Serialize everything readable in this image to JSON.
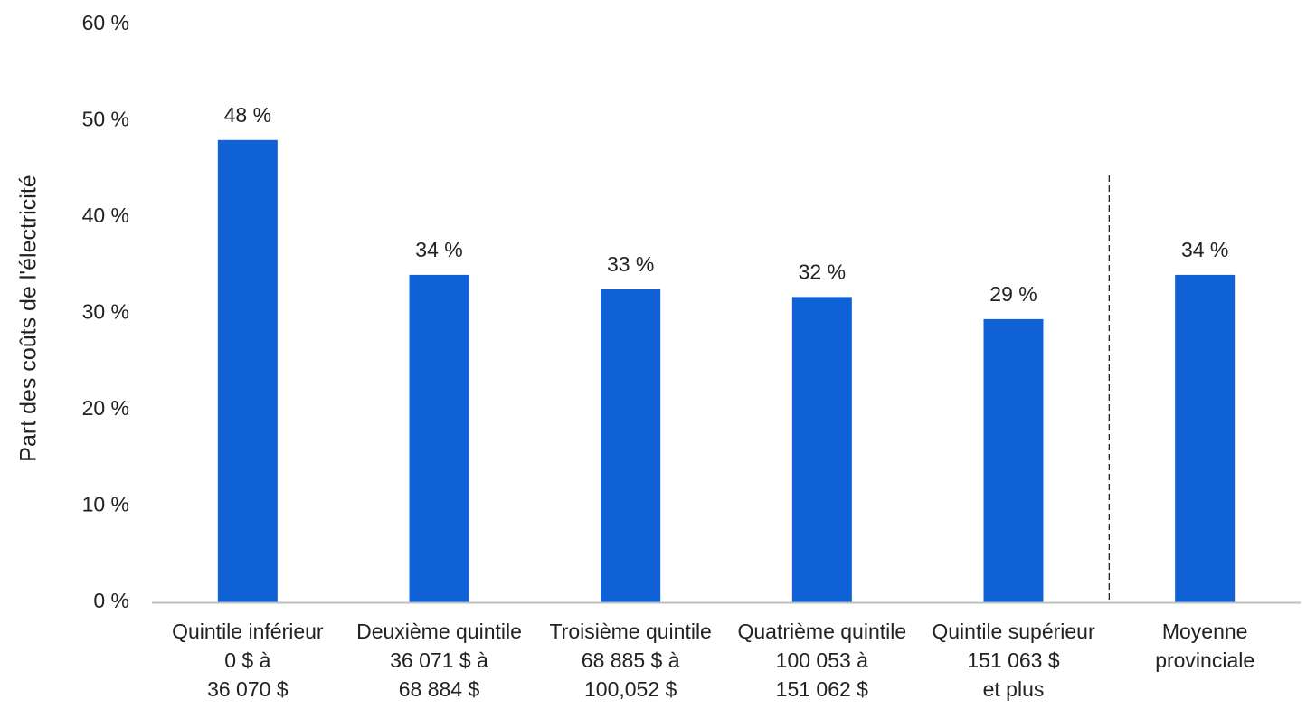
{
  "chart_data": {
    "type": "bar",
    "title": "",
    "ylabel": "Part des coûts de l'électricité",
    "xlabel": "",
    "ylim": [
      0,
      60
    ],
    "y_ticks": [
      0,
      10,
      20,
      30,
      40,
      50,
      60
    ],
    "y_tick_suffix": " %",
    "grid": false,
    "bar_color": "#1060D6",
    "axis_color": "#BFBFBF",
    "divider_before_last": true,
    "categories": [
      [
        "Quintile inférieur",
        "0 $ à",
        "36 070 $"
      ],
      [
        "Deuxième quintile",
        "36 071 $ à",
        "68 884 $"
      ],
      [
        "Troisième quintile",
        "68 885 $ à",
        "100,052 $"
      ],
      [
        "Quatrième quintile",
        "100 053 à",
        "151 062 $"
      ],
      [
        "Quintile supérieur",
        "151 063 $",
        "et plus"
      ],
      [
        "Moyenne",
        "provinciale"
      ]
    ],
    "values": [
      48,
      34,
      32.5,
      31.7,
      29.4,
      34
    ],
    "data_labels": [
      "48 %",
      "34 %",
      "33 %",
      "32 %",
      "29 %",
      "34 %"
    ]
  }
}
